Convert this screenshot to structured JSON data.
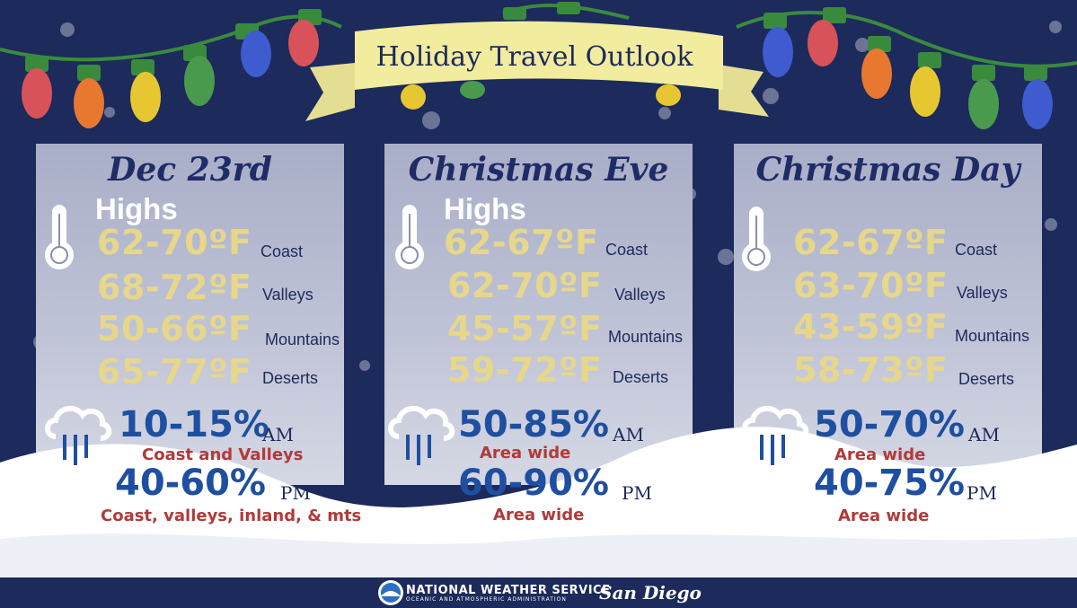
{
  "banner": {
    "title": "Holiday Travel Outlook"
  },
  "colors": {
    "background": "#1c2a5c",
    "temp": "#e6d78b",
    "precip": "#1e4fa0",
    "area": "#b03a3a"
  },
  "days": [
    {
      "title": "Dec 23rd",
      "highs_label": "Highs",
      "temps": [
        {
          "range": "62-70ºF",
          "region": "Coast"
        },
        {
          "range": "68-72ºF",
          "region": "Valleys"
        },
        {
          "range": "50-66ºF",
          "region": "Mountains"
        },
        {
          "range": "65-77ºF",
          "region": "Deserts"
        }
      ],
      "precip": [
        {
          "pct": "10-15%",
          "time": "AM",
          "area": "Coast and Valleys"
        },
        {
          "pct": "40-60%",
          "time": "PM",
          "area": "Coast, valleys, inland, & mts"
        }
      ]
    },
    {
      "title": "Christmas Eve",
      "highs_label": "Highs",
      "temps": [
        {
          "range": "62-67ºF",
          "region": "Coast"
        },
        {
          "range": "62-70ºF",
          "region": "Valleys"
        },
        {
          "range": "45-57ºF",
          "region": "Mountains"
        },
        {
          "range": "59-72ºF",
          "region": "Deserts"
        }
      ],
      "precip": [
        {
          "pct": "50-85%",
          "time": "AM",
          "area": "Area wide"
        },
        {
          "pct": "60-90%",
          "time": "PM",
          "area": "Area wide"
        }
      ]
    },
    {
      "title": "Christmas Day",
      "temps": [
        {
          "range": "62-67ºF",
          "region": "Coast"
        },
        {
          "range": "63-70ºF",
          "region": "Valleys"
        },
        {
          "range": "43-59ºF",
          "region": "Mountains"
        },
        {
          "range": "58-73ºF",
          "region": "Deserts"
        }
      ],
      "precip": [
        {
          "pct": "50-70%",
          "time": "AM",
          "area": "Area wide"
        },
        {
          "pct": "40-75%",
          "time": "PM",
          "area": "Area wide"
        }
      ]
    }
  ],
  "footer": {
    "agency": "NATIONAL WEATHER SERVICE",
    "agency_sub": "OCEANIC AND ATMOSPHERIC ADMINISTRATION",
    "office": "San Diego"
  }
}
